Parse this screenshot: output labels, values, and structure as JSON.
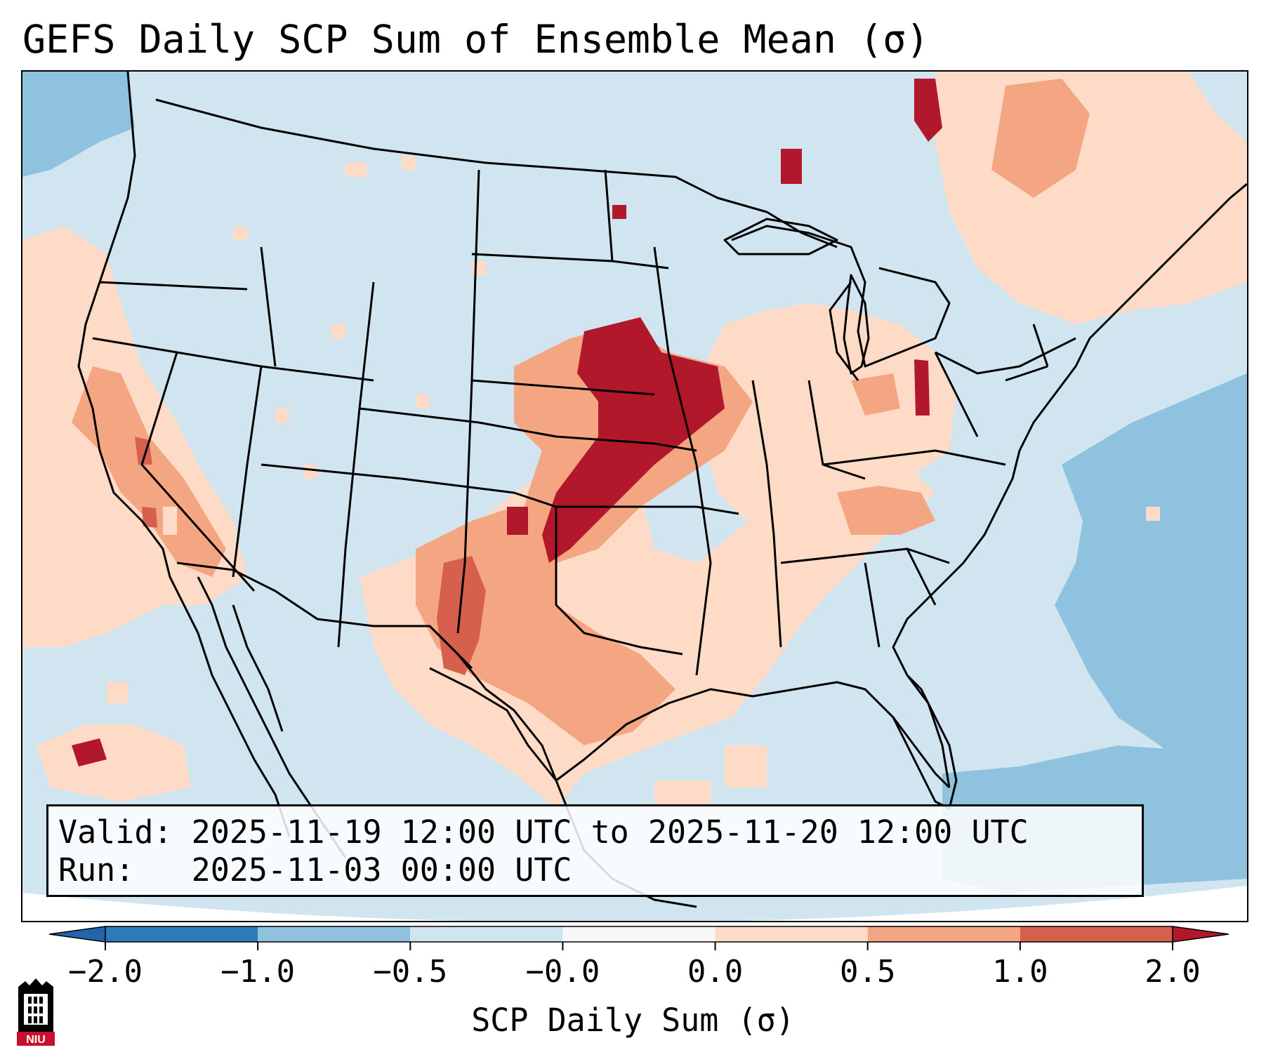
{
  "header": {
    "title": "GEFS Daily SCP Sum of Ensemble Mean (σ)"
  },
  "info_box": {
    "valid_label": "Valid:",
    "valid_value": "2025-11-19 12:00 UTC to 2025-11-20 12:00 UTC",
    "run_label": "Run:",
    "run_value": "2025-11-03 00:00 UTC"
  },
  "colorbar": {
    "label": "SCP Daily Sum (σ)",
    "ticks": [
      "−2.0",
      "−1.0",
      "−0.5",
      "−0.0",
      "0.0",
      "0.5",
      "1.0",
      "2.0"
    ],
    "colors": [
      "#2f7ab8",
      "#8ec2de",
      "#d1e5f0",
      "#f7f7f7",
      "#fddbc7",
      "#f4a582",
      "#d6604d",
      "#b2182b"
    ],
    "extend_low_color": "#2166ac",
    "extend_high_color": "#b2182b"
  },
  "map": {
    "background_color": "#d1e5f0",
    "outline_color": "#000000"
  },
  "logo": {
    "text": "NIU",
    "color": "#c8102e"
  }
}
